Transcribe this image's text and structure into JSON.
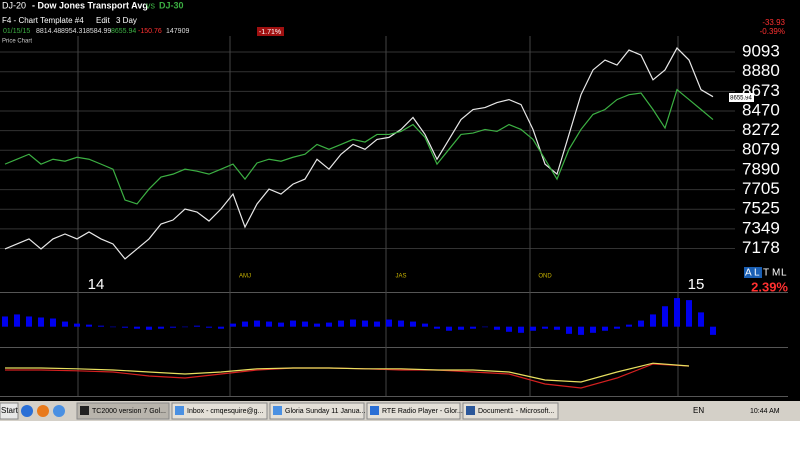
{
  "header": {
    "desc": "- Dow Jones Transport Avg",
    "vs": "vs",
    "template": "F4 - Chart Template #4",
    "edit": "Edit",
    "period": "3 Day",
    "panel": "Price Chart"
  },
  "quote": {
    "date": "01/15/15",
    "open": "8814.48",
    "high": "8954.31",
    "low": "8584.99",
    "last": "8655.94",
    "change": "-150.76",
    "volume": "147909",
    "pct_box": "-1.71%",
    "right_change": "-33.93",
    "right_pct": "-0.39%",
    "buttons": [
      "A",
      "L",
      "T",
      "M",
      "L"
    ],
    "bottom_pct": "2.39%"
  },
  "chart_data": [
    {
      "type": "line",
      "log_scale": true,
      "ylim": [
        7011,
        9248
      ],
      "yticks": [
        9093,
        8880,
        8673,
        8470,
        8272,
        8079,
        7890,
        7705,
        7525,
        7349,
        7178
      ],
      "grid": true,
      "categories": [
        null,
        null,
        null,
        null,
        null,
        null,
        null,
        null,
        "14",
        null,
        null,
        null,
        null,
        null,
        null,
        null,
        null,
        null,
        null,
        null,
        "AMJ",
        null,
        null,
        null,
        null,
        null,
        null,
        null,
        null,
        null,
        null,
        null,
        null,
        "JAS",
        null,
        null,
        null,
        null,
        null,
        null,
        null,
        null,
        null,
        null,
        null,
        "OND",
        null,
        null,
        null,
        null,
        null,
        null,
        null,
        null,
        null,
        null,
        null,
        null,
        "15",
        null
      ],
      "series": [
        {
          "name": "DJ-20",
          "color": "#e8e8e8",
          "values": [
            7174,
            7217,
            7261,
            7174,
            7261,
            7304,
            7261,
            7322,
            7261,
            7217,
            7088,
            7174,
            7261,
            7392,
            7428,
            7527,
            7500,
            7419,
            7527,
            7664,
            7366,
            7573,
            7710,
            7664,
            7756,
            7803,
            7992,
            7897,
            8040,
            8136,
            8088,
            8185,
            8205,
            8284,
            8404,
            8234,
            7992,
            8185,
            8383,
            8485,
            8505,
            8556,
            8587,
            8536,
            8284,
            7945,
            7850,
            8234,
            8638,
            8899,
            9006,
            8952,
            9115,
            9060,
            8794,
            8899,
            9137,
            9006,
            8690,
            8617
          ]
        },
        {
          "name": "DJ-30",
          "color": "#3cb043",
          "values": [
            7945,
            7992,
            8040,
            7945,
            7992,
            7973,
            8011,
            7992,
            7945,
            7897,
            7609,
            7573,
            7710,
            7822,
            7850,
            7897,
            7878,
            7850,
            7897,
            7945,
            7803,
            7956,
            7992,
            7973,
            8011,
            8040,
            8136,
            8088,
            8136,
            8185,
            8159,
            8234,
            8234,
            8264,
            8333,
            8205,
            7945,
            8088,
            8234,
            8248,
            8284,
            8264,
            8333,
            8284,
            8185,
            7992,
            7803,
            8088,
            8284,
            8435,
            8485,
            8587,
            8638,
            8655,
            8485,
            8298,
            8690,
            8587,
            8485,
            8383
          ]
        }
      ]
    },
    {
      "type": "bar",
      "color": "#0000ee",
      "ylim": [
        -15,
        32
      ],
      "values": [
        10,
        12,
        10,
        9,
        8,
        5,
        3,
        2,
        1,
        0,
        -1,
        -2,
        -3,
        -2,
        -1,
        0,
        1,
        -1,
        -2,
        3,
        5,
        6,
        5,
        4,
        6,
        5,
        3,
        4,
        6,
        7,
        6,
        5,
        7,
        6,
        5,
        3,
        -2,
        -4,
        -3,
        -2,
        0,
        -3,
        -5,
        -6,
        -4,
        -2,
        -3,
        -7,
        -8,
        -6,
        -4,
        -2,
        2,
        6,
        12,
        20,
        28,
        26,
        14,
        -8
      ]
    },
    {
      "type": "line",
      "ylim": [
        0,
        100
      ],
      "series": [
        {
          "color": "#d42020",
          "values": [
            55,
            55,
            53,
            50,
            40,
            35,
            45,
            55,
            60,
            60,
            58,
            55,
            55,
            50,
            45,
            20,
            10,
            35,
            70,
            65
          ]
        },
        {
          "color": "#e8e060",
          "values": [
            60,
            60,
            58,
            55,
            50,
            45,
            50,
            58,
            60,
            60,
            58,
            58,
            55,
            55,
            50,
            30,
            25,
            50,
            72,
            65
          ]
        }
      ]
    }
  ],
  "taskbar": {
    "start": "Start",
    "windows": [
      "TC2000 version 7 Gol...",
      "Inbox - cmqesquire@g...",
      "Gloria Sunday 11 Janua...",
      "RTE Radio Player - Glor...",
      "Document1 - Microsoft..."
    ],
    "lang": "EN",
    "clock": "10:44 AM"
  }
}
